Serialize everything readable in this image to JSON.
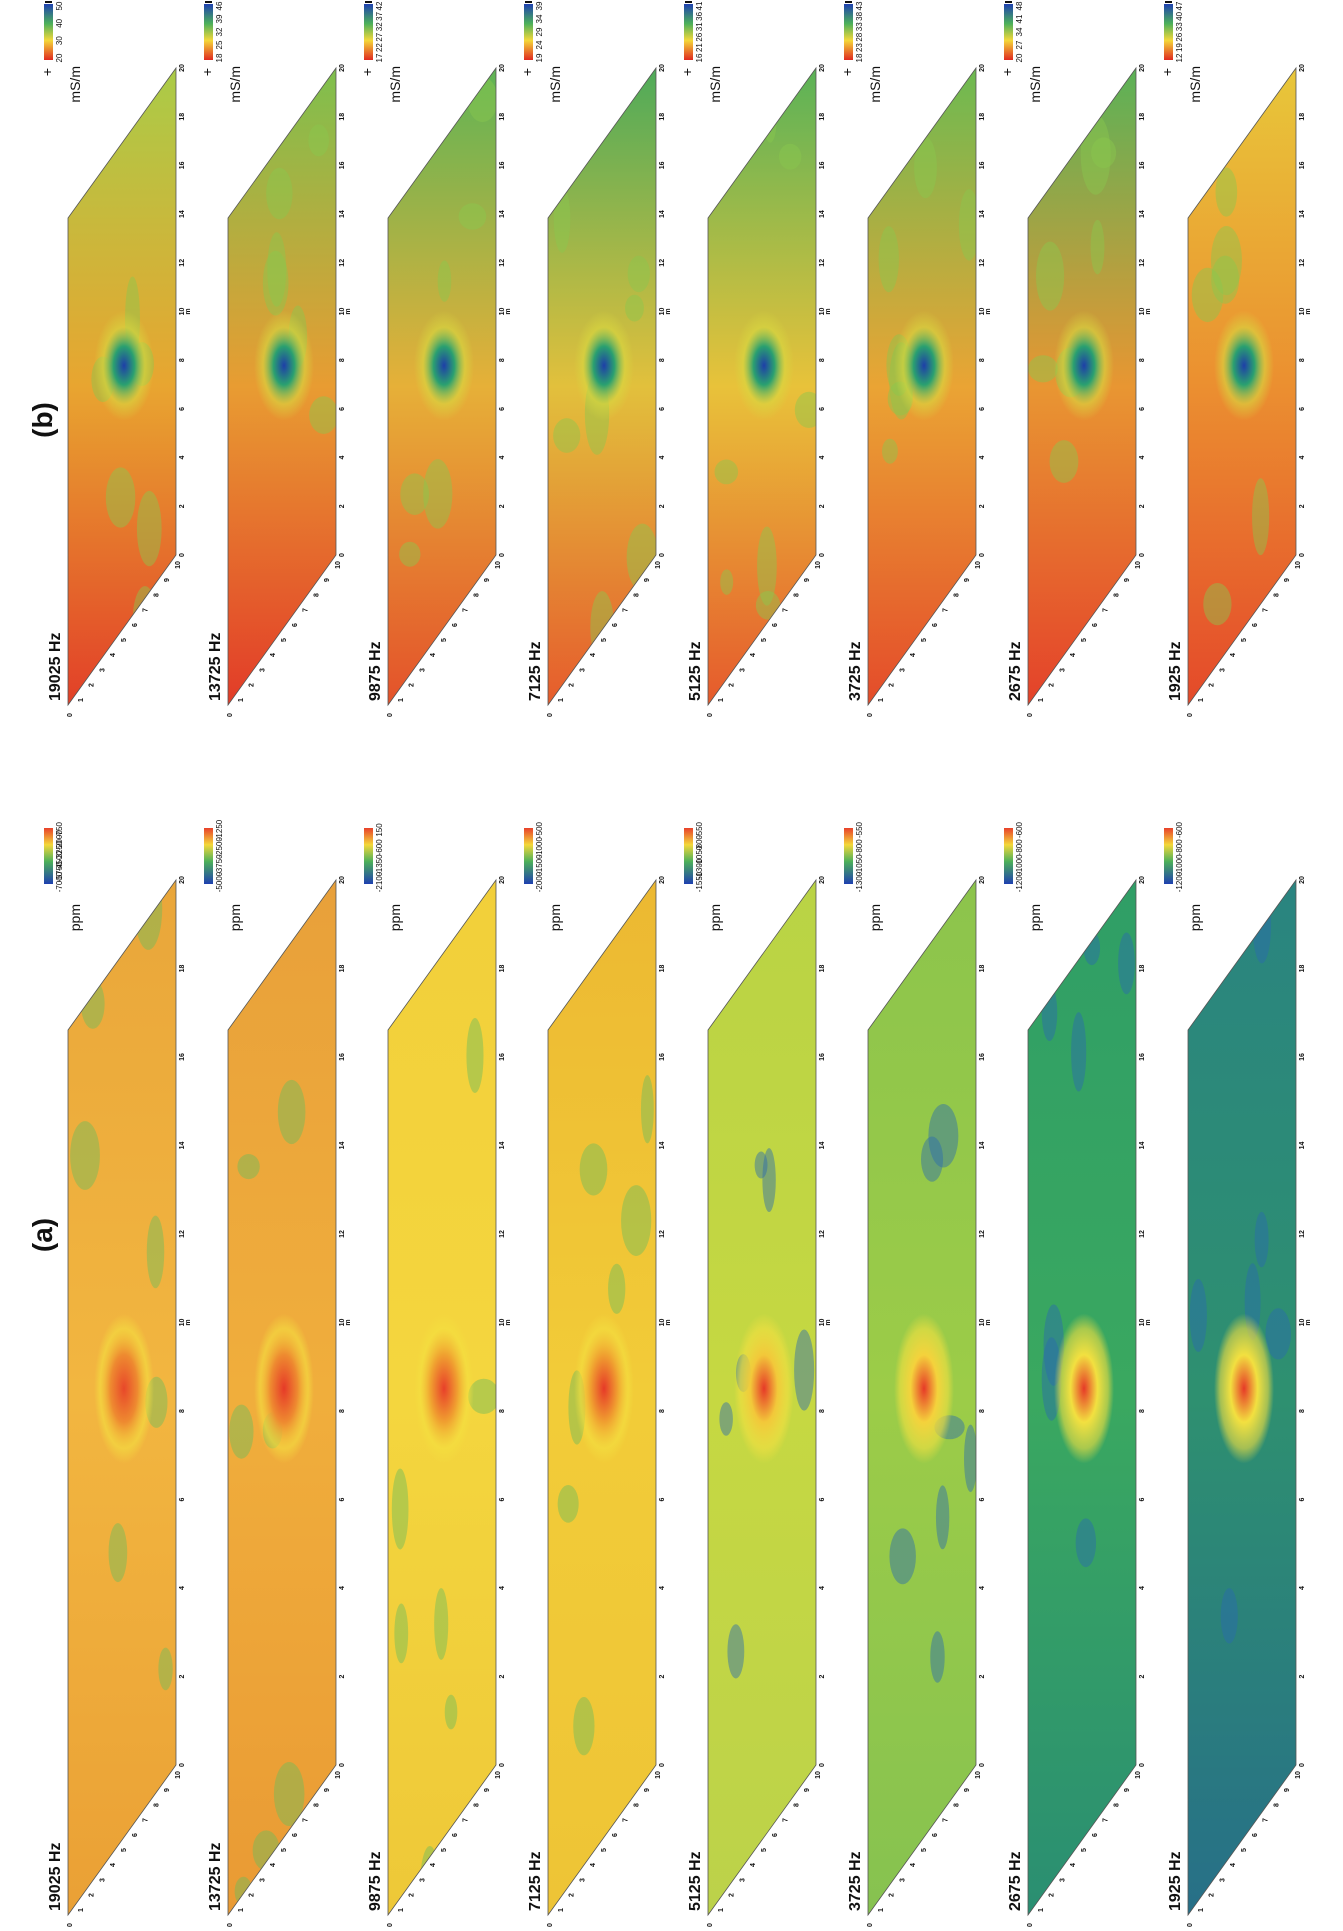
{
  "panels": [
    {
      "label": "(a)",
      "unit": "ppm",
      "strips": [
        {
          "frequency": "19025 Hz",
          "colorbar_ticks": [
            -750,
            -2000,
            -3250,
            -4500,
            -5750,
            -7000
          ]
        },
        {
          "frequency": "13725 Hz",
          "colorbar_ticks": [
            -1250,
            -2500,
            -3750,
            -5000
          ]
        },
        {
          "frequency": "9875 Hz",
          "colorbar_ticks": [
            150,
            -600,
            -1350,
            -2100
          ]
        },
        {
          "frequency": "7125 Hz",
          "colorbar_ticks": [
            -500,
            -1000,
            -1500,
            -2000
          ]
        },
        {
          "frequency": "5125 Hz",
          "colorbar_ticks": [
            -550,
            -800,
            -1050,
            -1300,
            -1550
          ]
        },
        {
          "frequency": "3725 Hz",
          "colorbar_ticks": [
            -550,
            -800,
            -1050,
            -1300
          ]
        },
        {
          "frequency": "2675 Hz",
          "colorbar_ticks": [
            -600,
            -800,
            -1000,
            -1200
          ]
        },
        {
          "frequency": "1925 Hz",
          "colorbar_ticks": [
            -600,
            -800,
            -1000,
            -1200
          ]
        }
      ]
    },
    {
      "label": "(b)",
      "unit": "mS/m",
      "plus": "+",
      "strips": [
        {
          "frequency": "19025 Hz",
          "colorbar_ticks": [
            50,
            40,
            30,
            20
          ]
        },
        {
          "frequency": "13725 Hz",
          "colorbar_ticks": [
            46,
            39,
            32,
            25,
            18
          ]
        },
        {
          "frequency": "9875 Hz",
          "colorbar_ticks": [
            42,
            37,
            32,
            27,
            22,
            17
          ]
        },
        {
          "frequency": "7125 Hz",
          "colorbar_ticks": [
            39,
            34,
            29,
            24,
            19
          ]
        },
        {
          "frequency": "5125 Hz",
          "colorbar_ticks": [
            41,
            36,
            31,
            26,
            21,
            16
          ]
        },
        {
          "frequency": "3725 Hz",
          "colorbar_ticks": [
            43,
            38,
            33,
            28,
            23,
            18
          ]
        },
        {
          "frequency": "2675 Hz",
          "colorbar_ticks": [
            48,
            41,
            34,
            27,
            20
          ]
        },
        {
          "frequency": "1925 Hz",
          "colorbar_ticks": [
            47,
            40,
            33,
            26,
            19,
            12
          ]
        }
      ]
    }
  ],
  "axis": {
    "long_ticks": [
      0,
      2,
      4,
      6,
      8,
      10,
      12,
      14,
      16,
      18,
      20
    ],
    "short_ticks": [
      0,
      1,
      2,
      3,
      4,
      5,
      6,
      7,
      8,
      9,
      10
    ],
    "unit": "m"
  }
}
